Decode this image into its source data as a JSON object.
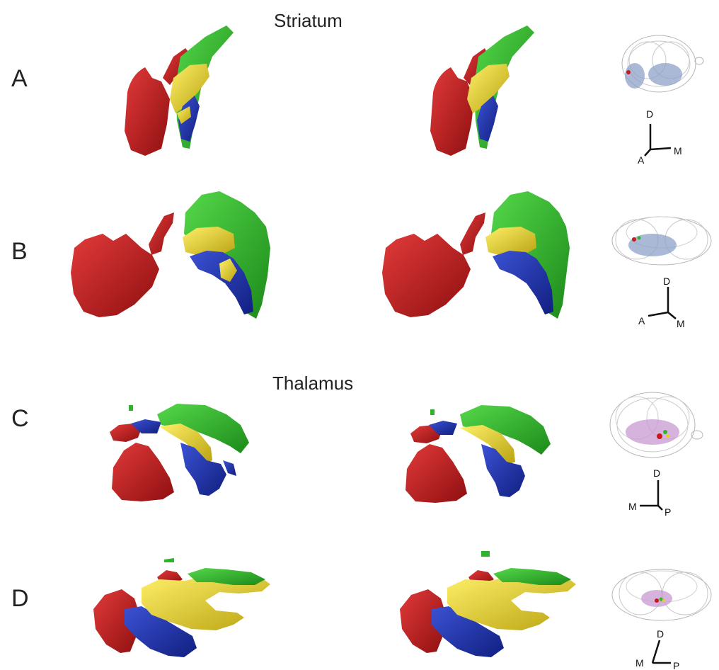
{
  "sections": {
    "striatum": "Striatum",
    "thalamus": "Thalamus"
  },
  "rows": [
    "A",
    "B",
    "C",
    "D"
  ],
  "axes": {
    "a": {
      "up": "D",
      "left": "A",
      "right": "M"
    },
    "b": {
      "up": "D",
      "left": "A",
      "right": "M"
    },
    "c": {
      "up": "D",
      "left": "M",
      "right": "P"
    },
    "d": {
      "up": "D",
      "left": "M",
      "right": "P"
    }
  },
  "colors": {
    "red": "#c8191b",
    "green": "#2fb32a",
    "yellow": "#e6d21e",
    "blue": "#1f33b0",
    "brain_outline": "#9a9a9a",
    "striatum_region": "#8ea2c8",
    "thalamus_region": "#c79ad1"
  }
}
